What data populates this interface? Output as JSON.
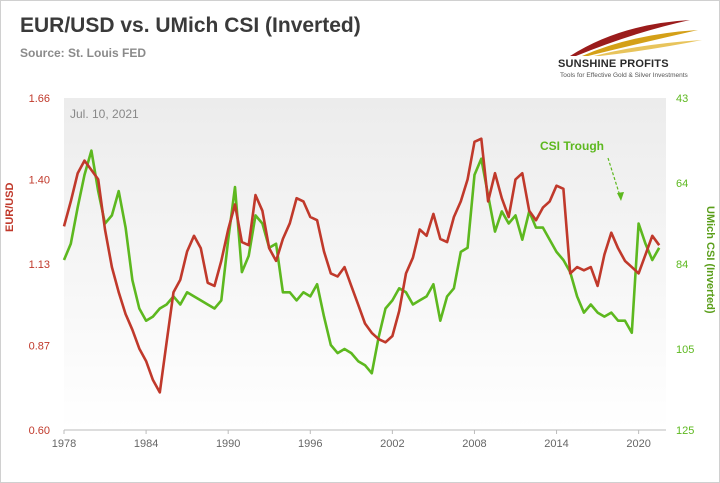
{
  "header": {
    "title": "EUR/USD vs. UMich CSI (Inverted)",
    "source": "Source: St. Louis FED"
  },
  "logo": {
    "name": "SUNSHINE PROFITS",
    "tagline": "Tools for Effective Gold & Silver Investments"
  },
  "chart_data": {
    "type": "line",
    "date_label": "Jul. 10, 2021",
    "annotation": "CSI Trough",
    "xlabel": "",
    "x_ticks": [
      "1978",
      "1984",
      "1990",
      "1996",
      "2002",
      "2008",
      "2014",
      "2020"
    ],
    "xlim": [
      1978,
      2022
    ],
    "grid": false,
    "colors": {
      "eurusd": "#c0392b",
      "csi": "#5db81f"
    },
    "y_left": {
      "label": "EUR/USD",
      "ticks": [
        "0.60",
        "0.87",
        "1.13",
        "1.40",
        "1.66"
      ],
      "range": [
        0.6,
        1.66
      ]
    },
    "y_right": {
      "label": "UMich CSI (Inverted)",
      "ticks": [
        "43",
        "64",
        "84",
        "105",
        "125"
      ],
      "range": [
        125,
        43
      ],
      "inverted": true
    },
    "series": [
      {
        "axis": "left",
        "x": [
          1978.0,
          1978.5,
          1979.0,
          1979.5,
          1980.0,
          1980.5,
          1981.0,
          1981.5,
          1982.0,
          1982.5,
          1983.0,
          1983.5,
          1984.0,
          1984.5,
          1985.0,
          1985.5,
          1986.0,
          1986.5,
          1987.0,
          1987.5,
          1988.0,
          1988.5,
          1989.0,
          1989.5,
          1990.0,
          1990.5,
          1991.0,
          1991.5,
          1992.0,
          1992.5,
          1993.0,
          1993.5,
          1994.0,
          1994.5,
          1995.0,
          1995.5,
          1996.0,
          1996.5,
          1997.0,
          1997.5,
          1998.0,
          1998.5,
          1999.0,
          1999.5,
          2000.0,
          2000.5,
          2001.0,
          2001.5,
          2002.0,
          2002.5,
          2003.0,
          2003.5,
          2004.0,
          2004.5,
          2005.0,
          2005.5,
          2006.0,
          2006.5,
          2007.0,
          2007.5,
          2008.0,
          2008.5,
          2009.0,
          2009.5,
          2010.0,
          2010.5,
          2011.0,
          2011.5,
          2012.0,
          2012.5,
          2013.0,
          2013.5,
          2014.0,
          2014.5,
          2015.0,
          2015.5,
          2016.0,
          2016.5,
          2017.0,
          2017.5,
          2018.0,
          2018.5,
          2019.0,
          2019.5,
          2020.0,
          2020.5,
          2021.0,
          2021.5
        ],
        "values": [
          1.25,
          1.33,
          1.42,
          1.46,
          1.43,
          1.4,
          1.24,
          1.12,
          1.04,
          0.97,
          0.92,
          0.86,
          0.82,
          0.76,
          0.72,
          0.88,
          1.04,
          1.08,
          1.17,
          1.22,
          1.18,
          1.07,
          1.06,
          1.14,
          1.24,
          1.32,
          1.2,
          1.19,
          1.35,
          1.3,
          1.18,
          1.14,
          1.21,
          1.26,
          1.34,
          1.33,
          1.28,
          1.27,
          1.17,
          1.1,
          1.09,
          1.12,
          1.06,
          1.0,
          0.94,
          0.91,
          0.89,
          0.88,
          0.9,
          0.98,
          1.1,
          1.15,
          1.24,
          1.22,
          1.29,
          1.21,
          1.2,
          1.28,
          1.33,
          1.4,
          1.52,
          1.53,
          1.33,
          1.42,
          1.34,
          1.28,
          1.4,
          1.42,
          1.3,
          1.27,
          1.31,
          1.33,
          1.38,
          1.37,
          1.1,
          1.12,
          1.11,
          1.12,
          1.06,
          1.16,
          1.23,
          1.18,
          1.14,
          1.12,
          1.1,
          1.16,
          1.22,
          1.19
        ]
      },
      {
        "axis": "right",
        "x": [
          1978.0,
          1978.5,
          1979.0,
          1979.5,
          1980.0,
          1980.5,
          1981.0,
          1981.5,
          1982.0,
          1982.5,
          1983.0,
          1983.5,
          1984.0,
          1984.5,
          1985.0,
          1985.5,
          1986.0,
          1986.5,
          1987.0,
          1987.5,
          1988.0,
          1988.5,
          1989.0,
          1989.5,
          1990.0,
          1990.5,
          1991.0,
          1991.5,
          1992.0,
          1992.5,
          1993.0,
          1993.5,
          1994.0,
          1994.5,
          1995.0,
          1995.5,
          1996.0,
          1996.5,
          1997.0,
          1997.5,
          1998.0,
          1998.5,
          1999.0,
          1999.5,
          2000.0,
          2000.5,
          2001.0,
          2001.5,
          2002.0,
          2002.5,
          2003.0,
          2003.5,
          2004.0,
          2004.5,
          2005.0,
          2005.5,
          2006.0,
          2006.5,
          2007.0,
          2007.5,
          2008.0,
          2008.5,
          2009.0,
          2009.5,
          2010.0,
          2010.5,
          2011.0,
          2011.5,
          2012.0,
          2012.5,
          2013.0,
          2013.5,
          2014.0,
          2014.5,
          2015.0,
          2015.5,
          2016.0,
          2016.5,
          2017.0,
          2017.5,
          2018.0,
          2018.5,
          2019.0,
          2019.5,
          2020.0,
          2020.5,
          2021.0,
          2021.5
        ],
        "values": [
          83,
          79,
          70,
          62,
          56,
          66,
          74,
          72,
          66,
          75,
          88,
          95,
          98,
          97,
          95,
          94,
          92,
          94,
          91,
          92,
          93,
          94,
          95,
          93,
          78,
          65,
          86,
          82,
          72,
          74,
          80,
          79,
          91,
          91,
          93,
          91,
          92,
          89,
          97,
          104,
          106,
          105,
          106,
          108,
          109,
          111,
          102,
          95,
          93,
          90,
          91,
          94,
          93,
          92,
          89,
          98,
          92,
          90,
          81,
          80,
          62,
          58,
          67,
          76,
          71,
          74,
          72,
          78,
          71,
          75,
          75,
          78,
          81,
          83,
          86,
          92,
          96,
          94,
          96,
          97,
          96,
          98,
          98,
          101,
          74,
          79,
          83,
          80
        ]
      }
    ]
  }
}
